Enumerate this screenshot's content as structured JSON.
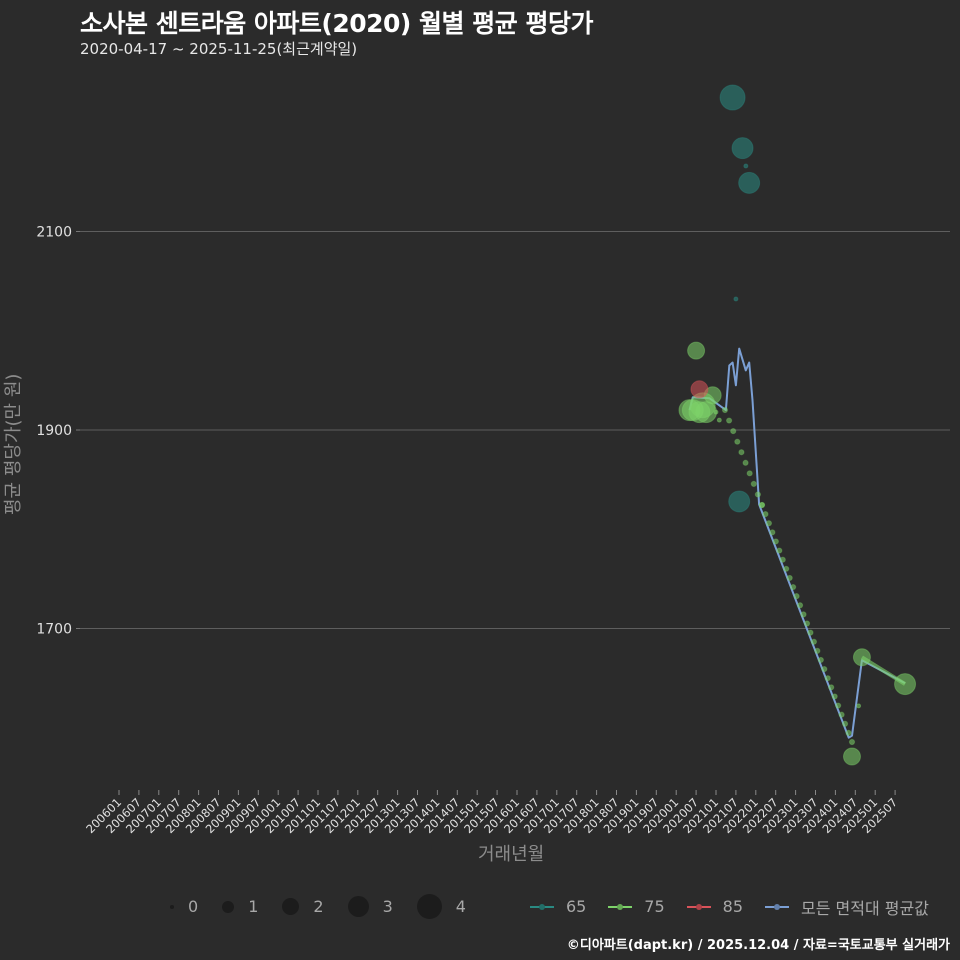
{
  "header": {
    "title": "소사본 센트라움 아파트(2020) 월별 평균 평당가",
    "subtitle": "2020-04-17 ~ 2025-11-25(최근계약일)"
  },
  "footer": {
    "credit": "©디아파트(dapt.kr) / 2025.12.04 / 자료=국토교통부 실거래가"
  },
  "legend": {
    "size_title": "",
    "sizes": [
      {
        "label": "0",
        "d": 4
      },
      {
        "label": "1",
        "d": 12
      },
      {
        "label": "2",
        "d": 17
      },
      {
        "label": "3",
        "d": 21
      },
      {
        "label": "4",
        "d": 25
      }
    ],
    "series": [
      {
        "label": "65",
        "color": "#2a8a82"
      },
      {
        "label": "75",
        "color": "#7ed36a"
      },
      {
        "label": "85",
        "color": "#d9535a"
      },
      {
        "label": "모든 면적대 평균값",
        "color": "#7b9fd4"
      }
    ]
  },
  "chart_data": {
    "type": "scatter",
    "title": "소사본 센트라움 아파트(2020) 월별 평균 평당가",
    "subtitle": "2020-04-17 ~ 2025-11-25(최근계약일)",
    "xlabel": "거래년월",
    "ylabel": "평균 평당가(만 원)",
    "ylim": [
      1530,
      2270
    ],
    "yticks": [
      1700,
      1900,
      2100
    ],
    "grid": true,
    "legend_position": "bottom",
    "x_ticks": [
      "200601",
      "200607",
      "200701",
      "200707",
      "200801",
      "200807",
      "200901",
      "200907",
      "201001",
      "201007",
      "201101",
      "201107",
      "201201",
      "201207",
      "201301",
      "201307",
      "201401",
      "201407",
      "201501",
      "201507",
      "201601",
      "201607",
      "201701",
      "201707",
      "201801",
      "201807",
      "201901",
      "201907",
      "202001",
      "202007",
      "202101",
      "202107",
      "202201",
      "202207",
      "202301",
      "202307",
      "202401",
      "202407",
      "202501",
      "202507"
    ],
    "series": [
      {
        "name": "65",
        "color": "#2a8a82",
        "points": [
          {
            "x": "202106",
            "y": 2235,
            "size": 4
          },
          {
            "x": "202109",
            "y": 2184,
            "size": 3
          },
          {
            "x": "202110",
            "y": 2166,
            "size": 0
          },
          {
            "x": "202111",
            "y": 2149,
            "size": 3
          },
          {
            "x": "202107",
            "y": 2032,
            "size": 0
          },
          {
            "x": "202108",
            "y": 1828,
            "size": 3
          }
        ]
      },
      {
        "name": "75",
        "color": "#7ed36a",
        "points": [
          {
            "x": "202005",
            "y": 1920,
            "size": 3
          },
          {
            "x": "202006",
            "y": 1920,
            "size": 3
          },
          {
            "x": "202007",
            "y": 1980,
            "size": 2
          },
          {
            "x": "202008",
            "y": 1918,
            "size": 3
          },
          {
            "x": "202009",
            "y": 1925,
            "size": 4
          },
          {
            "x": "202010",
            "y": 1918,
            "size": 3
          },
          {
            "x": "202012",
            "y": 1935,
            "size": 2
          },
          {
            "x": "202101",
            "y": 1918,
            "size": 0
          },
          {
            "x": "202102",
            "y": 1910,
            "size": 0
          },
          {
            "x": "202103",
            "y": 1898,
            "size": 0
          },
          {
            "x": "202104",
            "y": 1888,
            "size": 0
          },
          {
            "x": "202105",
            "y": 1877,
            "size": 0
          },
          {
            "x": "202106",
            "y": 1867,
            "size": 0
          },
          {
            "x": "202107",
            "y": 1857,
            "size": 0
          },
          {
            "x": "202108",
            "y": 1846,
            "size": 0
          },
          {
            "x": "202109",
            "y": 1836,
            "size": 0
          },
          {
            "x": "202110",
            "y": 1826,
            "size": 0
          },
          {
            "x": "202201",
            "y": 1815,
            "size": 0
          },
          {
            "x": "202207",
            "y": 1758,
            "size": 0
          },
          {
            "x": "202301",
            "y": 1700,
            "size": 0
          },
          {
            "x": "202307",
            "y": 1643,
            "size": 0
          },
          {
            "x": "202401",
            "y": 1600,
            "size": 0
          },
          {
            "x": "202405",
            "y": 1582,
            "size": 0
          },
          {
            "x": "202406",
            "y": 1571,
            "size": 2
          },
          {
            "x": "202408",
            "y": 1622,
            "size": 0
          },
          {
            "x": "202409",
            "y": 1671,
            "size": 2
          },
          {
            "x": "202510",
            "y": 1644,
            "size": 3
          }
        ]
      },
      {
        "name": "85",
        "color": "#d9535a",
        "points": [
          {
            "x": "202008",
            "y": 1941,
            "size": 2
          }
        ]
      },
      {
        "name": "모든 면적대 평균값",
        "color": "#7b9fd4",
        "type": "line",
        "points": [
          {
            "x": "202005",
            "y": 1920
          },
          {
            "x": "202006",
            "y": 1933
          },
          {
            "x": "202011",
            "y": 1932
          },
          {
            "x": "202104",
            "y": 1920
          },
          {
            "x": "202105",
            "y": 1965
          },
          {
            "x": "202106",
            "y": 1968
          },
          {
            "x": "202107",
            "y": 1945
          },
          {
            "x": "202108",
            "y": 1982
          },
          {
            "x": "202110",
            "y": 1960
          },
          {
            "x": "202111",
            "y": 1968
          },
          {
            "x": "202112",
            "y": 1930
          },
          {
            "x": "202202",
            "y": 1825
          },
          {
            "x": "202405",
            "y": 1590
          },
          {
            "x": "202406",
            "y": 1592
          },
          {
            "x": "202409",
            "y": 1668
          },
          {
            "x": "202510",
            "y": 1645
          }
        ]
      }
    ]
  }
}
